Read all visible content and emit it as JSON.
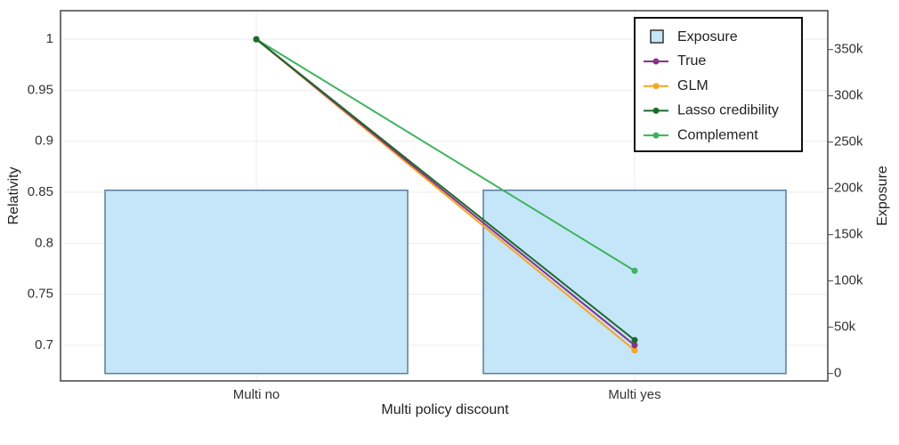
{
  "chart_data": {
    "type": "bar+line",
    "categories": [
      "Multi no",
      "Multi yes"
    ],
    "xlabel": "Multi policy discount",
    "ylabel": "Relativity",
    "y2label": "Exposure",
    "ylim": [
      0.665,
      1.028
    ],
    "y2lim": [
      -8000,
      392000
    ],
    "yticks": [
      0.7,
      0.75,
      0.8,
      0.85,
      0.9,
      0.95,
      1
    ],
    "yticklabels": [
      "0.7",
      "0.75",
      "0.8",
      "0.85",
      "0.9",
      "0.95",
      "1"
    ],
    "y2ticks": [
      0,
      50000,
      100000,
      150000,
      200000,
      250000,
      300000,
      350000
    ],
    "y2ticklabels": [
      "0",
      "50k",
      "100k",
      "150k",
      "200k",
      "250k",
      "300k",
      "350k"
    ],
    "grid": true,
    "legend_position": "top-right",
    "bars": {
      "name": "Exposure",
      "values": [
        198000,
        198000
      ],
      "color": "#c5e6f8",
      "edge_color": "#5d7aa0"
    },
    "series": [
      {
        "name": "True",
        "values": [
          1.0,
          0.7
        ],
        "color": "#8b2f8b"
      },
      {
        "name": "GLM",
        "values": [
          1.0,
          0.695
        ],
        "color": "#f5a623"
      },
      {
        "name": "Lasso credibility",
        "values": [
          1.0,
          0.705
        ],
        "color": "#1a6b2c"
      },
      {
        "name": "Complement",
        "values": [
          1.0,
          0.773
        ],
        "color": "#3cb35c"
      }
    ]
  }
}
